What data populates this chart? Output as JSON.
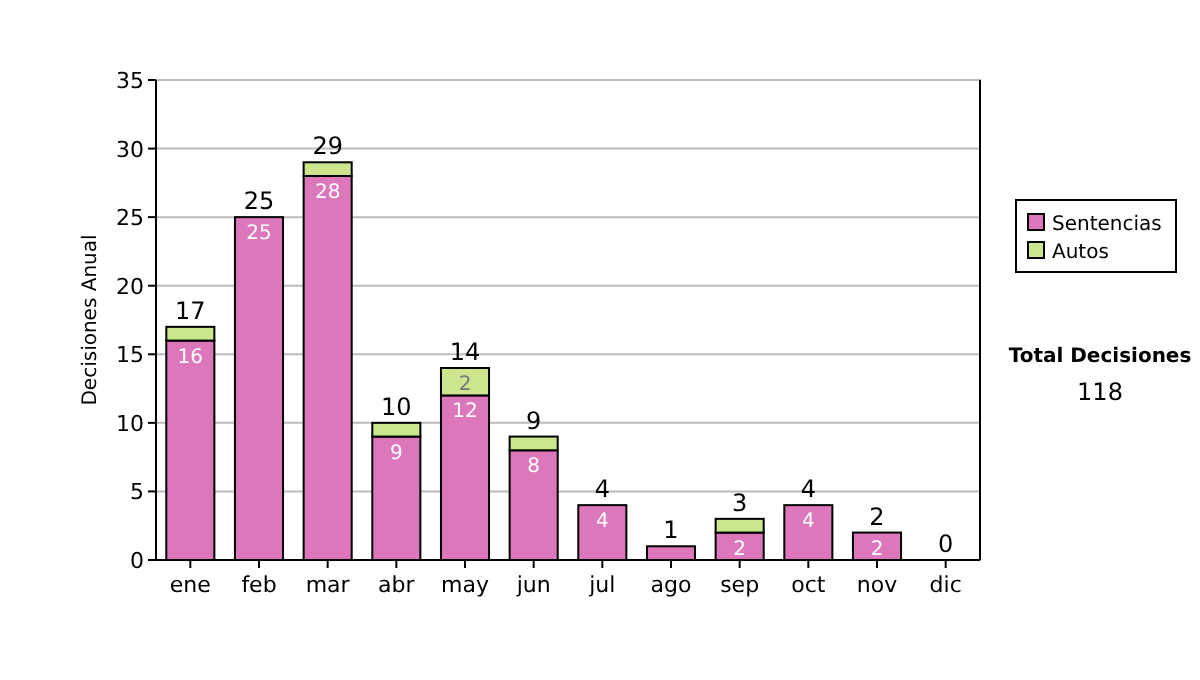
{
  "chart_data": {
    "type": "bar",
    "stacked": true,
    "ylabel": "Decisiones Anual",
    "categories": [
      "ene",
      "feb",
      "mar",
      "abr",
      "may",
      "jun",
      "jul",
      "ago",
      "sep",
      "oct",
      "nov",
      "dic"
    ],
    "series": [
      {
        "name": "Sentencias",
        "color": "#dd77bb",
        "values": [
          16,
          25,
          28,
          9,
          12,
          8,
          4,
          1,
          2,
          4,
          2,
          0
        ],
        "value_labels": [
          "16",
          "25",
          "28",
          "9",
          "12",
          "8",
          "4",
          null,
          "2",
          "4",
          "2",
          null
        ]
      },
      {
        "name": "Autos",
        "color": "#cce68e",
        "values": [
          1,
          0,
          1,
          1,
          2,
          1,
          0,
          0,
          1,
          0,
          0,
          0
        ],
        "value_labels": [
          null,
          null,
          null,
          null,
          "2",
          null,
          null,
          null,
          null,
          null,
          null,
          null
        ]
      }
    ],
    "totals": [
      "17",
      "25",
      "29",
      "10",
      "14",
      "9",
      "4",
      "1",
      "3",
      "4",
      "2",
      "0"
    ],
    "ylim": [
      0,
      35
    ],
    "yticks": [
      0,
      5,
      10,
      15,
      20,
      25,
      30,
      35
    ],
    "grid": "y",
    "legend": "right",
    "annotations": [
      "Total Decisiones",
      "118"
    ]
  }
}
